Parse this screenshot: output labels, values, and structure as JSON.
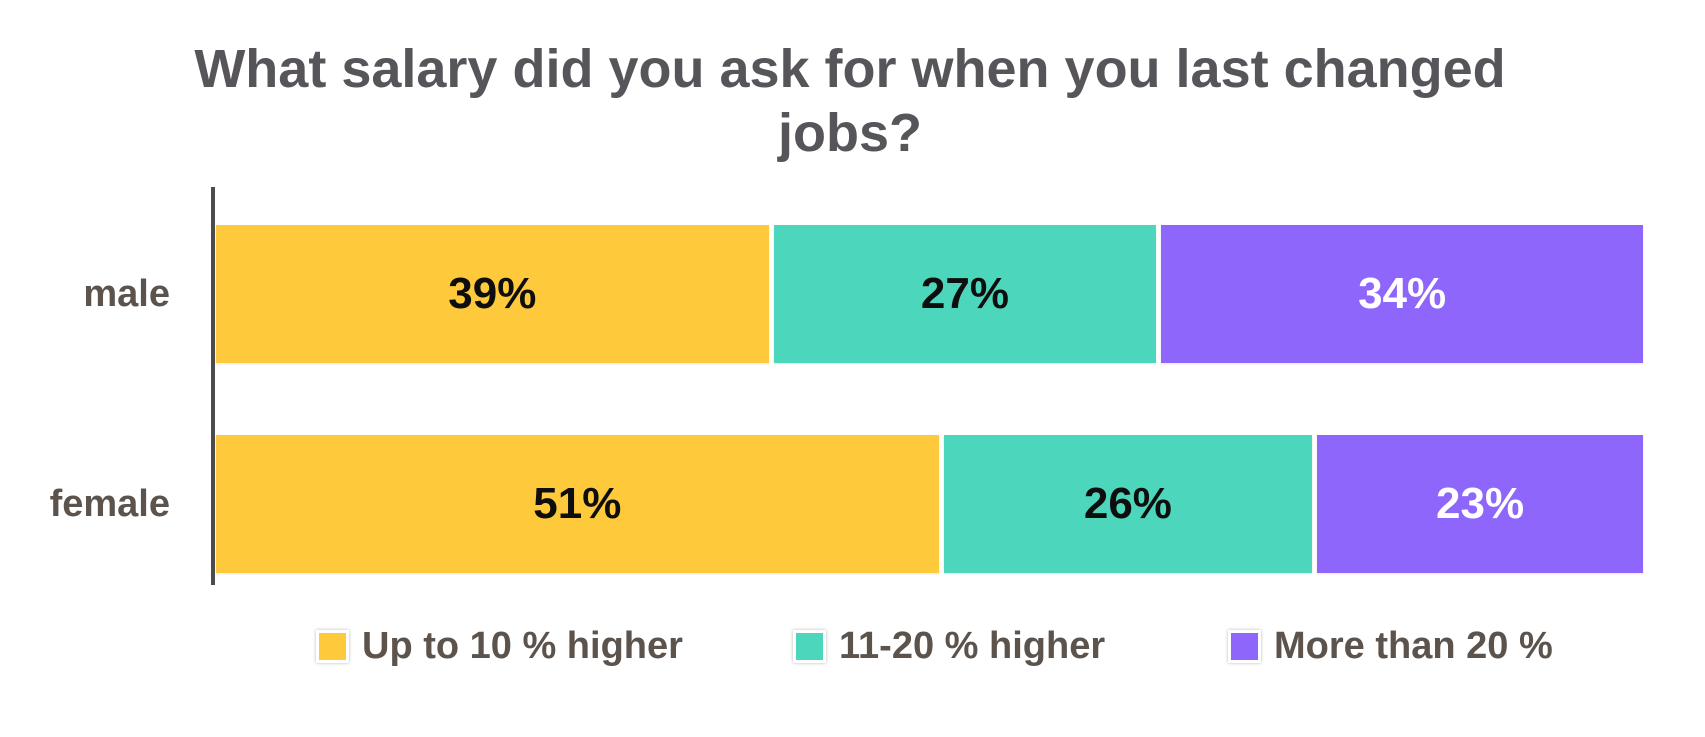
{
  "title": {
    "lines": [
      "What salary did you ask for when you last changed",
      "jobs?"
    ]
  },
  "chart_data": {
    "type": "bar",
    "orientation": "horizontal",
    "stacked": true,
    "title": "What salary did you ask for when you last changed jobs?",
    "categories": [
      "male",
      "female"
    ],
    "series": [
      {
        "name": "Up to 10 % higher",
        "values": [
          39,
          51
        ],
        "color": "#FFC93C",
        "label_color": "#0e0e0e"
      },
      {
        "name": "11-20 % higher",
        "values": [
          27,
          26
        ],
        "color": "#4CD7BC",
        "label_color": "#0e0e0e"
      },
      {
        "name": "More than 20 %",
        "values": [
          34,
          23
        ],
        "color": "#8E66FB",
        "label_color": "#ffffff"
      }
    ],
    "value_suffix": "%",
    "data_labels": [
      "39%",
      "27%",
      "34%",
      "51%",
      "26%",
      "23%"
    ],
    "xlim": [
      0,
      100
    ],
    "grid": false,
    "legend_position": "bottom",
    "axis": {
      "y_axis_line": true,
      "x_axis_labels": false
    }
  },
  "colors": {
    "background": "#FFFFFF",
    "title_text": "#57555A",
    "label_text": "#5B534C",
    "axis_line": "#4b4b50"
  }
}
